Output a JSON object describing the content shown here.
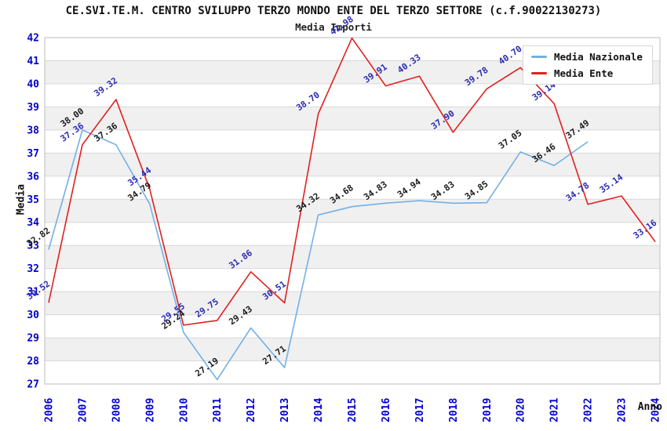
{
  "title": "CE.SVI.TE.M. CENTRO SVILUPPO TERZO MONDO ENTE DEL TERZO SETTORE (c.f.90022130273)",
  "subtitle": "Media Importi",
  "legend": {
    "items": [
      {
        "label": "Media Nazionale",
        "color": "#74b0e4"
      },
      {
        "label": "Media Ente",
        "color": "#e02020"
      }
    ]
  },
  "chart_data": {
    "type": "line",
    "title": "CE.SVI.TE.M. CENTRO SVILUPPO TERZO MONDO ENTE DEL TERZO SETTORE (c.f.90022130273)",
    "subtitle": "Media Importi",
    "xlabel": "Anno",
    "ylabel": "Media",
    "x": [
      2006,
      2007,
      2008,
      2009,
      2010,
      2011,
      2012,
      2013,
      2014,
      2015,
      2016,
      2017,
      2018,
      2019,
      2020,
      2021,
      2022,
      2023,
      2024
    ],
    "ylim": [
      27,
      42
    ],
    "y_tick_step": 1,
    "grid": true,
    "legend_position": "top-right",
    "axis_tick_color": "#0000cc",
    "band_color": "#f0f0f0",
    "grid_color": "#d8d8d8",
    "border_color": "#bdbdbd",
    "series": [
      {
        "name": "Media Nazionale",
        "color": "#74b0e4",
        "label_color": "#1a1a1a",
        "values": [
          32.82,
          38.0,
          37.36,
          34.79,
          29.24,
          27.19,
          29.43,
          27.71,
          34.32,
          34.68,
          34.83,
          34.94,
          34.83,
          34.85,
          37.05,
          36.46,
          37.49,
          null,
          null
        ]
      },
      {
        "name": "Media Ente",
        "color": "#e02020",
        "label_color": "#2b2bb0",
        "values": [
          30.52,
          37.36,
          39.32,
          35.44,
          29.55,
          29.75,
          31.86,
          30.51,
          38.7,
          41.98,
          39.91,
          40.33,
          37.9,
          39.78,
          40.7,
          39.14,
          34.78,
          35.14,
          33.16
        ]
      }
    ]
  }
}
